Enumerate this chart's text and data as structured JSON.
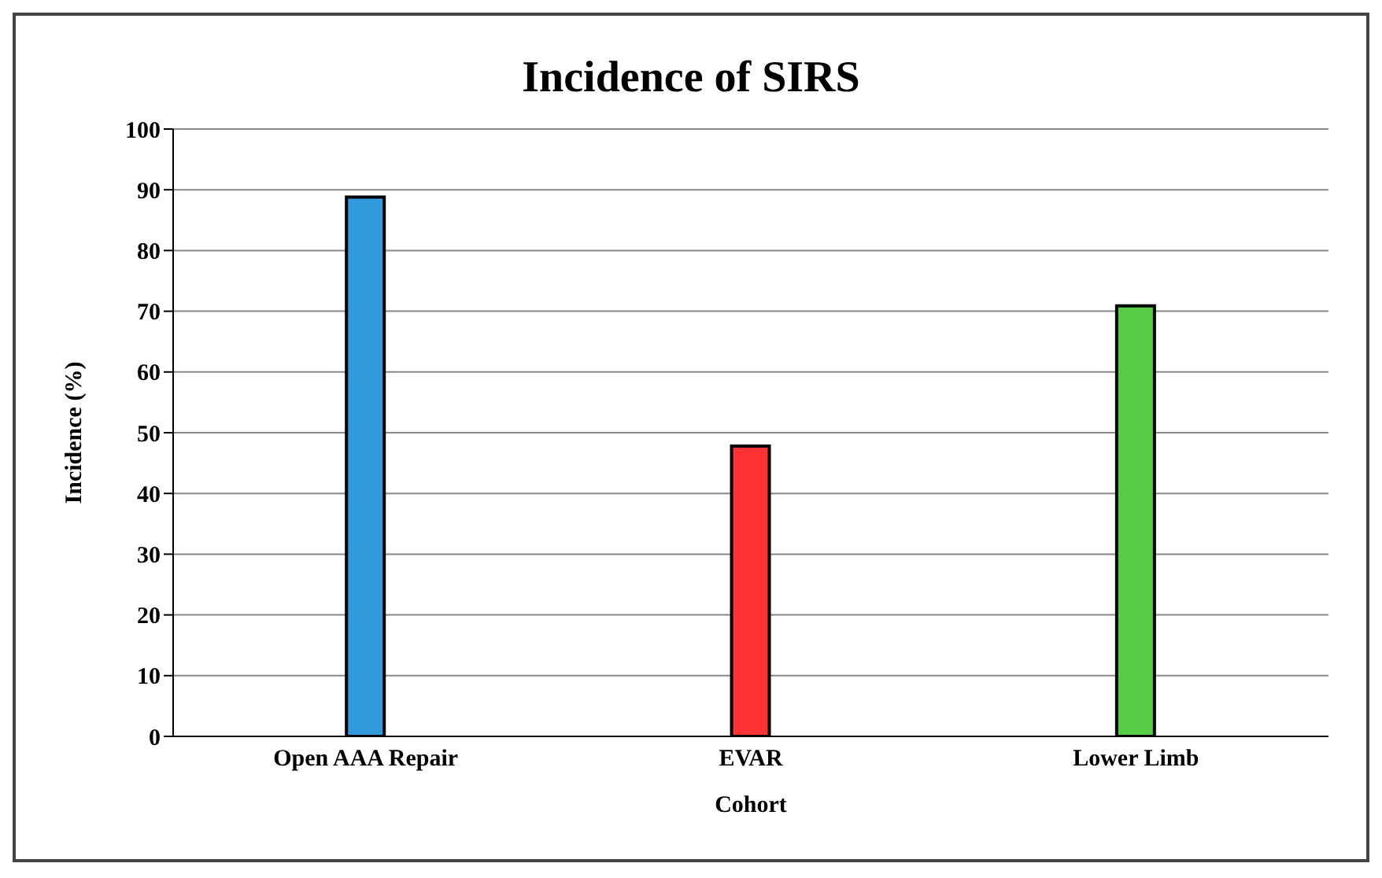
{
  "chart_data": {
    "type": "bar",
    "title": "Incidence of SIRS",
    "xlabel": "Cohort",
    "ylabel": "Incidence (%)",
    "categories": [
      "Open AAA Repair",
      "EVAR",
      "Lower Limb"
    ],
    "values": [
      88.8,
      47.8,
      70.9
    ],
    "colors": [
      "#3399dd",
      "#ff3333",
      "#55cc44"
    ],
    "ylim": [
      0,
      100
    ],
    "yticks": [
      0,
      10,
      20,
      30,
      40,
      50,
      60,
      70,
      80,
      90,
      100
    ],
    "grid": "y",
    "legend": false
  }
}
